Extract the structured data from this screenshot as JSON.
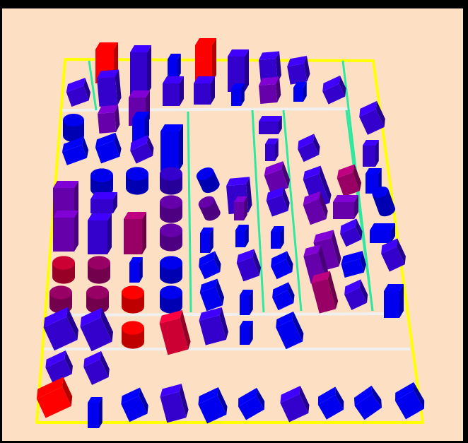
{
  "scene": {
    "background_color": "#fde0c4",
    "frame_color": "#000000",
    "board_border_color": "#ffff00",
    "divider_color": "#f0f0f0",
    "highlight_line_color": "#2ee8a0",
    "palette": [
      "#ff0000",
      "#cc0033",
      "#990066",
      "#6600aa",
      "#3300cc",
      "#0000ee"
    ]
  },
  "objects": [
    {
      "shape": "box",
      "color": "#ff0000"
    },
    {
      "shape": "box",
      "color": "#3300cc"
    },
    {
      "shape": "box",
      "color": "#0000ee"
    },
    {
      "shape": "box",
      "color": "#ff0000"
    },
    {
      "shape": "box",
      "color": "#3300cc"
    },
    {
      "shape": "box",
      "color": "#3300cc"
    },
    {
      "shape": "box",
      "color": "#3300cc"
    },
    {
      "shape": "box",
      "color": "#3300cc"
    },
    {
      "shape": "box",
      "color": "#3300cc"
    },
    {
      "shape": "box",
      "color": "#6600aa"
    },
    {
      "shape": "box",
      "color": "#3300cc"
    },
    {
      "shape": "box",
      "color": "#3300cc"
    },
    {
      "shape": "box",
      "color": "#0000ee"
    },
    {
      "shape": "box",
      "color": "#6600aa"
    },
    {
      "shape": "box",
      "color": "#0000ee"
    },
    {
      "shape": "box",
      "color": "#3300cc"
    },
    {
      "shape": "box",
      "color": "#3300cc"
    },
    {
      "shape": "cylinder",
      "color": "#0000ee"
    },
    {
      "shape": "box",
      "color": "#6600aa"
    },
    {
      "shape": "box",
      "color": "#0000ee"
    },
    {
      "shape": "box",
      "color": "#0000ee"
    },
    {
      "shape": "box",
      "color": "#3300cc"
    },
    {
      "shape": "box",
      "color": "#3300cc"
    },
    {
      "shape": "box",
      "color": "#3300cc"
    },
    {
      "shape": "box",
      "color": "#3300cc"
    },
    {
      "shape": "box",
      "color": "#0000ee"
    },
    {
      "shape": "box",
      "color": "#0000ee"
    },
    {
      "shape": "box",
      "color": "#3300cc"
    },
    {
      "shape": "cylinder",
      "color": "#0000ee"
    },
    {
      "shape": "cylinder",
      "color": "#0000ee"
    },
    {
      "shape": "cylinder",
      "color": "#3300cc"
    },
    {
      "shape": "cylinder",
      "color": "#0000ee"
    },
    {
      "shape": "box",
      "color": "#0000ee"
    },
    {
      "shape": "box",
      "color": "#6600aa"
    },
    {
      "shape": "box",
      "color": "#3300cc"
    },
    {
      "shape": "box",
      "color": "#6600aa"
    },
    {
      "shape": "box",
      "color": "#3300cc"
    },
    {
      "shape": "box",
      "color": "#990066"
    },
    {
      "shape": "box",
      "color": "#3300cc"
    },
    {
      "shape": "cylinder",
      "color": "#6600aa"
    },
    {
      "shape": "cylinder",
      "color": "#6600aa"
    },
    {
      "shape": "box",
      "color": "#6600aa"
    },
    {
      "shape": "box",
      "color": "#3300cc"
    },
    {
      "shape": "box",
      "color": "#6600aa"
    },
    {
      "shape": "box",
      "color": "#6600aa"
    },
    {
      "shape": "cylinder",
      "color": "#0000ee"
    },
    {
      "shape": "box",
      "color": "#6600aa"
    },
    {
      "shape": "box",
      "color": "#3300cc"
    },
    {
      "shape": "box",
      "color": "#990066"
    },
    {
      "shape": "cylinder",
      "color": "#6600aa"
    },
    {
      "shape": "box",
      "color": "#0000ee"
    },
    {
      "shape": "box",
      "color": "#0000ee"
    },
    {
      "shape": "box",
      "color": "#0000ee"
    },
    {
      "shape": "box",
      "color": "#6600aa"
    },
    {
      "shape": "box",
      "color": "#3300cc"
    },
    {
      "shape": "box",
      "color": "#0000ee"
    },
    {
      "shape": "cylinder",
      "color": "#cc0033"
    },
    {
      "shape": "cylinder",
      "color": "#990066"
    },
    {
      "shape": "box",
      "color": "#0000ee"
    },
    {
      "shape": "cylinder",
      "color": "#0000ee"
    },
    {
      "shape": "box",
      "color": "#0000ee"
    },
    {
      "shape": "box",
      "color": "#3300cc"
    },
    {
      "shape": "box",
      "color": "#0000ee"
    },
    {
      "shape": "box",
      "color": "#6600aa"
    },
    {
      "shape": "box",
      "color": "#0000ee"
    },
    {
      "shape": "box",
      "color": "#3300cc"
    },
    {
      "shape": "cylinder",
      "color": "#990066"
    },
    {
      "shape": "cylinder",
      "color": "#990066"
    },
    {
      "shape": "cylinder",
      "color": "#ff0000"
    },
    {
      "shape": "cylinder",
      "color": "#0000ee"
    },
    {
      "shape": "box",
      "color": "#0000ee"
    },
    {
      "shape": "box",
      "color": "#0000ee"
    },
    {
      "shape": "box",
      "color": "#0000ee"
    },
    {
      "shape": "box",
      "color": "#990066"
    },
    {
      "shape": "box",
      "color": "#3300cc"
    },
    {
      "shape": "box",
      "color": "#0000ee"
    },
    {
      "shape": "box",
      "color": "#3300cc"
    },
    {
      "shape": "box",
      "color": "#3300cc"
    },
    {
      "shape": "cylinder",
      "color": "#ff0000"
    },
    {
      "shape": "box",
      "color": "#cc0033"
    },
    {
      "shape": "box",
      "color": "#3300cc"
    },
    {
      "shape": "box",
      "color": "#0000ee"
    },
    {
      "shape": "box",
      "color": "#0000ee"
    },
    {
      "shape": "box",
      "color": "#3300cc"
    },
    {
      "shape": "box",
      "color": "#3300cc"
    },
    {
      "shape": "box",
      "color": "#ff0000"
    },
    {
      "shape": "box",
      "color": "#0000ee"
    },
    {
      "shape": "box",
      "color": "#0000ee"
    },
    {
      "shape": "box",
      "color": "#3300cc"
    },
    {
      "shape": "box",
      "color": "#0000ee"
    },
    {
      "shape": "box",
      "color": "#0000ee"
    },
    {
      "shape": "box",
      "color": "#3300cc"
    },
    {
      "shape": "box",
      "color": "#0000ee"
    },
    {
      "shape": "box",
      "color": "#0000ee"
    },
    {
      "shape": "box",
      "color": "#0000ee"
    },
    {
      "shape": "box",
      "color": "#3300cc"
    }
  ]
}
